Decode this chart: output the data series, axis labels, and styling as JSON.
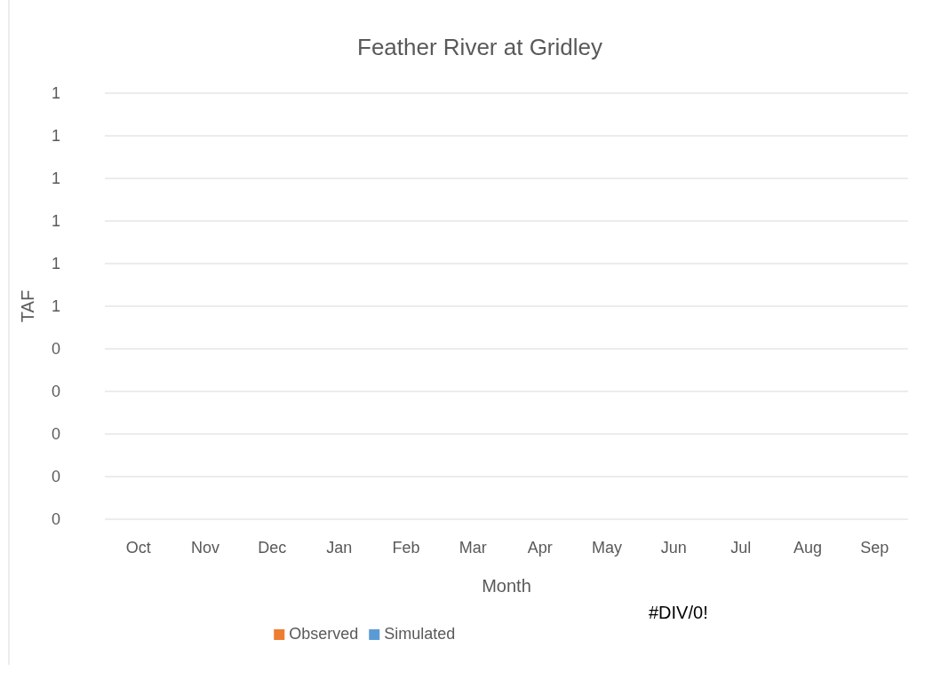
{
  "chart_data": {
    "type": "bar",
    "title": "Feather River at Gridley",
    "xlabel": "Month",
    "ylabel": "TAF",
    "categories": [
      "Oct",
      "Nov",
      "Dec",
      "Jan",
      "Feb",
      "Mar",
      "Apr",
      "May",
      "Jun",
      "Jul",
      "Aug",
      "Sep"
    ],
    "series": [
      {
        "name": "Observed",
        "color": "#ed7d31",
        "values": [
          null,
          null,
          null,
          null,
          null,
          null,
          null,
          null,
          null,
          null,
          null,
          null
        ]
      },
      {
        "name": "Simulated",
        "color": "#5b9bd5",
        "values": [
          null,
          null,
          null,
          null,
          null,
          null,
          null,
          null,
          null,
          null,
          null,
          null
        ]
      }
    ],
    "ylim": [
      0,
      1
    ],
    "yticks": [
      {
        "value": 0,
        "label": "0"
      },
      {
        "value": 0.1,
        "label": "0"
      },
      {
        "value": 0.2,
        "label": "0"
      },
      {
        "value": 0.3,
        "label": "0"
      },
      {
        "value": 0.4,
        "label": "0"
      },
      {
        "value": 0.5,
        "label": "1"
      },
      {
        "value": 0.6,
        "label": "1"
      },
      {
        "value": 0.7,
        "label": "1"
      },
      {
        "value": 0.8,
        "label": "1"
      },
      {
        "value": 0.9,
        "label": "1"
      },
      {
        "value": 1,
        "label": "1"
      }
    ],
    "grid": "y",
    "legend": "bottom",
    "annotations": [
      "#DIV/0!"
    ]
  }
}
